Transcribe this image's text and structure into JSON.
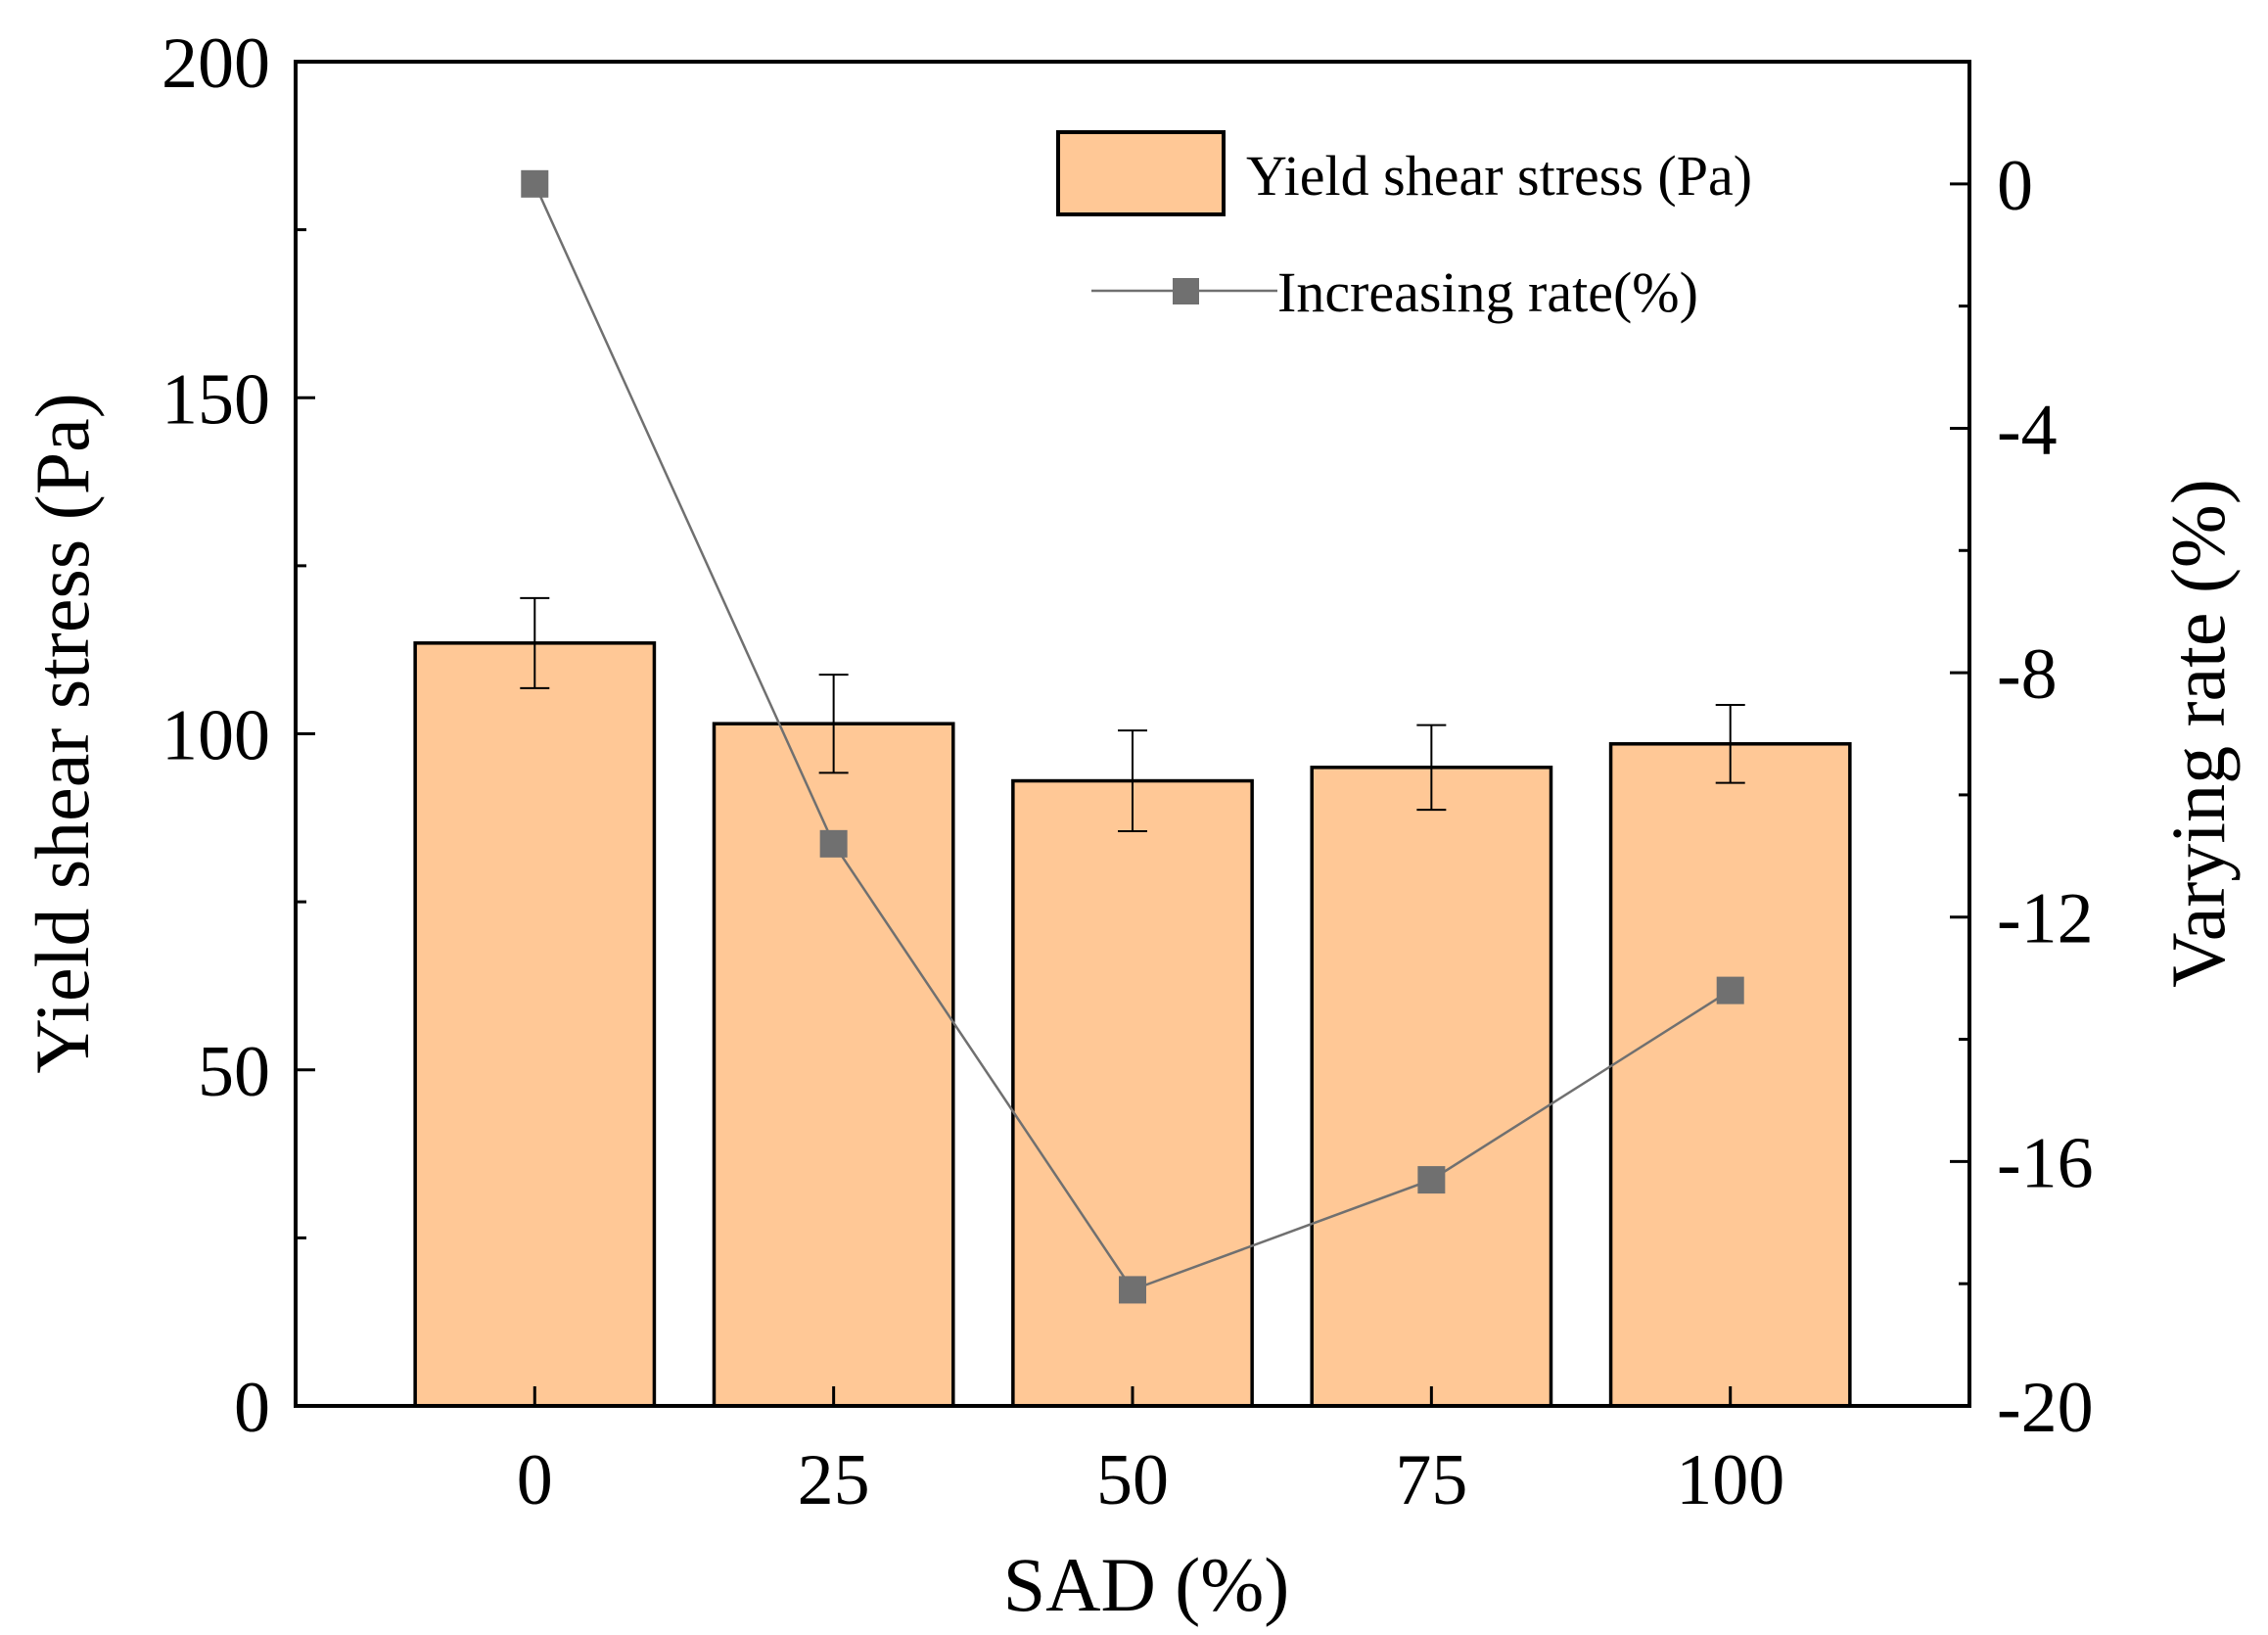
{
  "chart_data": {
    "type": "bar",
    "categories": [
      "0",
      "25",
      "50",
      "75",
      "100"
    ],
    "xlabel": "SAD (%)",
    "ylabel": "Yield shear stress (Pa)",
    "y2label": "Varying rate (%)",
    "ylim": [
      0,
      200
    ],
    "y2lim": [
      -20,
      2
    ],
    "yticks": [
      "0",
      "50",
      "100",
      "150",
      "200"
    ],
    "y2ticks": [
      "-20",
      "-16",
      "-12",
      "-8",
      "-4",
      "0"
    ],
    "series": [
      {
        "name": "Yield shear stress (Pa)",
        "type": "bar",
        "axis": "left",
        "values": [
          113.5,
          101.5,
          93.0,
          95.0,
          98.5
        ],
        "errors": [
          6.7,
          7.3,
          7.5,
          6.3,
          5.8
        ],
        "color": "#FFC896"
      },
      {
        "name": "Increasing rate(%)",
        "type": "line",
        "axis": "right",
        "values": [
          0,
          -10.8,
          -18.1,
          -16.3,
          -13.2
        ],
        "color": "#707070"
      }
    ],
    "legend": {
      "position": "top-right"
    },
    "grid": false
  }
}
